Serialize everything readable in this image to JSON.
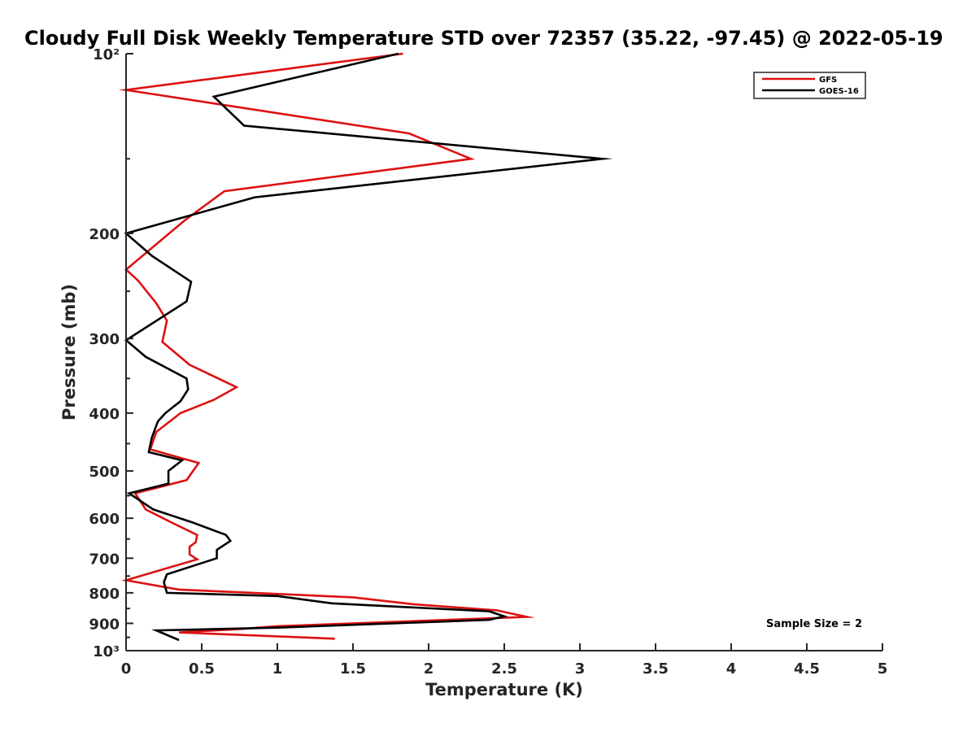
{
  "chart_data": {
    "type": "line",
    "title": "Cloudy Full Disk Weekly Temperature STD over 72357 (35.22, -97.45) @ 2022-05-19",
    "xlabel": "Temperature (K)",
    "ylabel": "Pressure (mb)",
    "xlim": [
      0,
      5
    ],
    "ylim": [
      100,
      1000
    ],
    "y_scale": "log",
    "y_direction": "reversed",
    "x_ticks": [
      0,
      0.5,
      1,
      1.5,
      2,
      2.5,
      3,
      3.5,
      4,
      4.5,
      5
    ],
    "x_tick_labels": [
      "0",
      "0.5",
      "1",
      "1.5",
      "2",
      "2.5",
      "3",
      "3.5",
      "4",
      "4.5",
      "5"
    ],
    "y_ticks": [
      100,
      200,
      300,
      400,
      500,
      600,
      700,
      800,
      900,
      1000
    ],
    "y_tick_labels": [
      "10²",
      "200",
      "300",
      "400",
      "500",
      "600",
      "700",
      "800",
      "900",
      "10³"
    ],
    "grid": false,
    "legend_position": "top-right",
    "annotation": "Sample Size = 2",
    "series": [
      {
        "name": "GFS",
        "color": "#dd1111",
        "points": [
          [
            1.83,
            100
          ],
          [
            0.0,
            115
          ],
          [
            1.87,
            136
          ],
          [
            2.28,
            150
          ],
          [
            0.65,
            170
          ],
          [
            0.39,
            190
          ],
          [
            0.0,
            230
          ],
          [
            0.08,
            240
          ],
          [
            0.2,
            262
          ],
          [
            0.27,
            280
          ],
          [
            0.24,
            304
          ],
          [
            0.42,
            332
          ],
          [
            0.73,
            362
          ],
          [
            0.58,
            380
          ],
          [
            0.36,
            400
          ],
          [
            0.2,
            430
          ],
          [
            0.16,
            460
          ],
          [
            0.48,
            485
          ],
          [
            0.4,
            518
          ],
          [
            0.06,
            545
          ],
          [
            0.13,
            580
          ],
          [
            0.3,
            610
          ],
          [
            0.47,
            640
          ],
          [
            0.46,
            658
          ],
          [
            0.42,
            670
          ],
          [
            0.42,
            690
          ],
          [
            0.47,
            703
          ],
          [
            0.21,
            735
          ],
          [
            0.0,
            762
          ],
          [
            0.35,
            790
          ],
          [
            1.5,
            814
          ],
          [
            1.9,
            836
          ],
          [
            2.45,
            856
          ],
          [
            2.65,
            878
          ],
          [
            1.0,
            910
          ],
          [
            0.75,
            920
          ],
          [
            0.35,
            932
          ],
          [
            1.38,
            955
          ]
        ]
      },
      {
        "name": "GOES-16",
        "color": "#000000",
        "points": [
          [
            1.8,
            100
          ],
          [
            0.58,
            118
          ],
          [
            0.78,
            132
          ],
          [
            3.15,
            150
          ],
          [
            0.85,
            174
          ],
          [
            0.0,
            200
          ],
          [
            0.17,
            218
          ],
          [
            0.43,
            241
          ],
          [
            0.4,
            260
          ],
          [
            0.0,
            302
          ],
          [
            0.13,
            322
          ],
          [
            0.4,
            350
          ],
          [
            0.41,
            365
          ],
          [
            0.36,
            382
          ],
          [
            0.26,
            400
          ],
          [
            0.21,
            413
          ],
          [
            0.17,
            440
          ],
          [
            0.15,
            465
          ],
          [
            0.37,
            480
          ],
          [
            0.28,
            500
          ],
          [
            0.28,
            525
          ],
          [
            0.02,
            545
          ],
          [
            0.18,
            580
          ],
          [
            0.44,
            610
          ],
          [
            0.66,
            640
          ],
          [
            0.69,
            655
          ],
          [
            0.6,
            678
          ],
          [
            0.6,
            700
          ],
          [
            0.27,
            745
          ],
          [
            0.25,
            768
          ],
          [
            0.27,
            800
          ],
          [
            1.0,
            810
          ],
          [
            1.36,
            833
          ],
          [
            2.4,
            859
          ],
          [
            2.5,
            876
          ],
          [
            2.4,
            888
          ],
          [
            1.0,
            915
          ],
          [
            0.2,
            925
          ],
          [
            0.35,
            960
          ]
        ]
      }
    ]
  }
}
